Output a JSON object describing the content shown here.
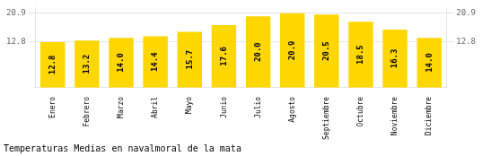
{
  "chart_data": {
    "type": "bar",
    "title": "Temperaturas Medias en navalmoral de la mata",
    "categories": [
      "Enero",
      "Febrero",
      "Marzo",
      "Abril",
      "Mayo",
      "Junio",
      "Julio",
      "Agosto",
      "Septiembre",
      "Octubre",
      "Noviembre",
      "Diciembre"
    ],
    "values": [
      12.8,
      13.2,
      14.0,
      14.4,
      15.7,
      17.6,
      20.0,
      20.9,
      20.5,
      18.5,
      16.3,
      14.0
    ],
    "value_labels": [
      "12.8",
      "13.2",
      "14.0",
      "14.4",
      "15.7",
      "17.6",
      "20.0",
      "20.9",
      "20.5",
      "18.5",
      "16.3",
      "14.0"
    ],
    "data_labels": true,
    "color": "#FFD700",
    "ylim": [
      0,
      22.5
    ],
    "yticks": [
      12.8,
      20.9
    ],
    "y2lim": [
      0,
      22.5
    ],
    "y2ticks": [
      12.8,
      20.9
    ],
    "grid": true
  }
}
